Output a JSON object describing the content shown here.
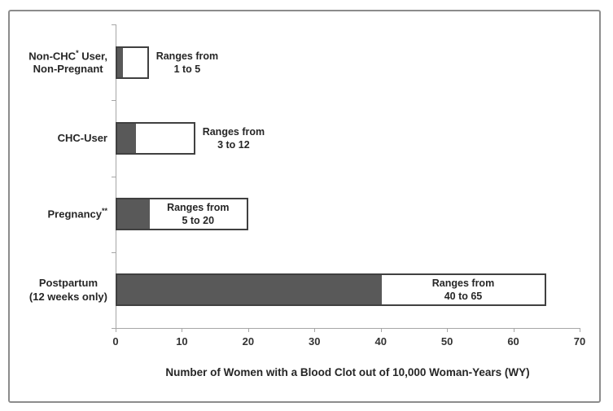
{
  "figure": {
    "background": "#ffffff",
    "border_color": "#8c8c8c"
  },
  "chart_data": {
    "type": "bar",
    "subtype": "range",
    "orientation": "horizontal",
    "title": "",
    "xlabel": "Number of Women with a Blood Clot out of 10,000 Woman-Years (WY)",
    "ylabel": "",
    "xlim": [
      0,
      70
    ],
    "xticks": [
      0,
      10,
      20,
      30,
      40,
      50,
      60,
      70
    ],
    "grid": false,
    "legend": "none",
    "categories": [
      "Non-CHC* User, Non-Pregnant",
      "CHC-User",
      "Pregnancy**",
      "Postpartum (12 weeks only)"
    ],
    "bars": [
      {
        "category": "Non-CHC* User, Non-Pregnant",
        "category_lines": [
          [
            {
              "text": "Non-CHC"
            },
            {
              "text": "*",
              "sup": true
            },
            {
              "text": " User,"
            }
          ],
          [
            {
              "text": "Non-Pregnant"
            }
          ]
        ],
        "range_low": 1,
        "range_high": 5,
        "label": "Ranges from 1 to 5",
        "label_lines": [
          "Ranges from",
          "1 to 5"
        ],
        "label_placement": "outside"
      },
      {
        "category": "CHC-User",
        "category_lines": [
          [
            {
              "text": "CHC-User"
            }
          ]
        ],
        "range_low": 3,
        "range_high": 12,
        "label": "Ranges from 3 to 12",
        "label_lines": [
          "Ranges from",
          "3 to 12"
        ],
        "label_placement": "outside"
      },
      {
        "category": "Pregnancy**",
        "category_lines": [
          [
            {
              "text": "Pregnancy"
            },
            {
              "text": "**",
              "sup": true
            }
          ]
        ],
        "range_low": 5,
        "range_high": 20,
        "label": "Ranges from 5 to 20",
        "label_lines": [
          "Ranges from",
          "5 to 20"
        ],
        "label_placement": "inside"
      },
      {
        "category": "Postpartum (12 weeks only)",
        "category_lines": [
          [
            {
              "text": "Postpartum"
            }
          ],
          [
            {
              "text": "(12 weeks only)"
            }
          ]
        ],
        "range_low": 40,
        "range_high": 65,
        "label": "Ranges from 40 to 65",
        "label_lines": [
          "Ranges from",
          "40 to 65"
        ],
        "label_placement": "inside"
      }
    ],
    "colors": {
      "dark_segment": "#595959",
      "light_segment": "#ffffff",
      "bar_border": "#404040",
      "axis_line": "#a6a6a6",
      "text": "#262626"
    }
  }
}
